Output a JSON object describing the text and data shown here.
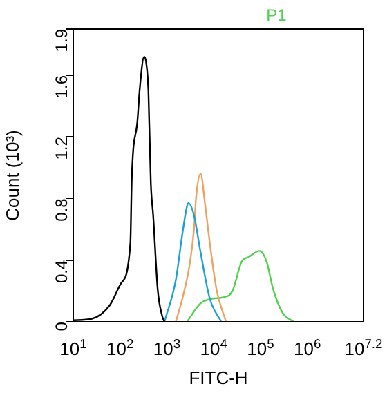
{
  "chart_data": {
    "type": "line",
    "xlabel": "FITC-H",
    "ylabel": "Count (10³)",
    "annotations": [
      "P1"
    ],
    "log": "x",
    "grid": false,
    "legend": false,
    "marker": "none",
    "xlim": [
      10,
      15848932
    ],
    "xticks": [
      {
        "value": 10,
        "label": "10$^{1}$"
      },
      {
        "value": 100,
        "label": "10$^{2}$"
      },
      {
        "value": 1000,
        "label": "10$^{3}$"
      },
      {
        "value": 10000,
        "label": "10$^{4}$"
      },
      {
        "value": 100000,
        "label": "10$^{5}$"
      },
      {
        "value": 1000000,
        "label": "10$^{6}$"
      },
      {
        "value": 15848932,
        "label": "10$^{7.2}$"
      }
    ],
    "ylim": [
      0,
      1.9
    ],
    "yticks": [
      0,
      0.4,
      0.8,
      1.2,
      1.6,
      1.9
    ],
    "series": [
      {
        "color": "#000000",
        "x": [
          10,
          25,
          61,
          105,
          166,
          178,
          236,
          263,
          326,
          362,
          403,
          454,
          510,
          637,
          790,
          890
        ],
        "values": [
          0.01,
          0.02,
          0.11,
          0.25,
          0.51,
          0.93,
          1.31,
          1.51,
          1.72,
          1.68,
          1.5,
          0.9,
          0.69,
          0.21,
          0.04,
          0
        ]
      },
      {
        "color": "#1ca0d8",
        "x": [
          890,
          1550,
          2140,
          2690,
          2890,
          3800,
          5250,
          8270,
          14500
        ],
        "values": [
          0,
          0.27,
          0.57,
          0.75,
          0.77,
          0.69,
          0.45,
          0.15,
          0
        ]
      },
      {
        "color": "#f0a060",
        "x": [
          1550,
          2140,
          3020,
          3800,
          4220,
          5250,
          6620,
          8270,
          11500,
          18300
        ],
        "values": [
          0,
          0.15,
          0.36,
          0.6,
          0.81,
          0.96,
          0.75,
          0.51,
          0.21,
          0
        ]
      },
      {
        "color": "#50d050",
        "x": [
          2690,
          5250,
          9230,
          16200,
          25100,
          39500,
          55400,
          95900,
          135000,
          187000,
          294000,
          515000
        ],
        "values": [
          0,
          0.12,
          0.15,
          0.16,
          0.2,
          0.39,
          0.42,
          0.46,
          0.39,
          0.21,
          0.06,
          0
        ]
      }
    ]
  }
}
